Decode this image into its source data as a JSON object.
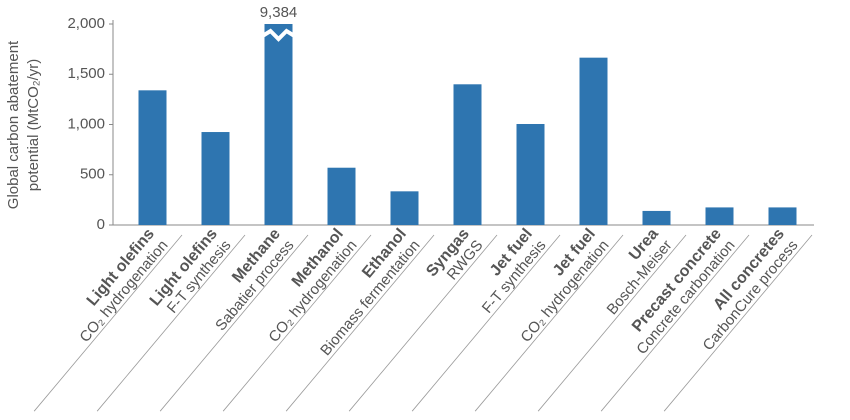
{
  "chart_data": {
    "type": "bar",
    "y_label_lines": [
      "Global carbon abatement",
      "potential (MtCO₂/yr)"
    ],
    "categories": [
      "Light olefins",
      "Light olefins",
      "Methane",
      "Methanol",
      "Ethanol",
      "Syngas",
      "Jet fuel",
      "Jet fuel",
      "Urea",
      "Precast concrete",
      "All concretes"
    ],
    "category_processes": [
      "CO₂ hydrogenation",
      "F-T synthesis",
      "Sabatier process",
      "CO₂ hydrogenation",
      "Biomass fermentation",
      "RWGS",
      "F-T synthesis",
      "CO₂ hydrogenation",
      "Bosch-Meiser",
      "Concrete carbonation",
      "CarbonCure process"
    ],
    "values": [
      1340,
      925,
      9384,
      570,
      335,
      1400,
      1005,
      1665,
      140,
      175,
      175
    ],
    "value_labels": [
      null,
      null,
      "9,384",
      null,
      null,
      null,
      null,
      null,
      null,
      null,
      null
    ],
    "color": "#2e75b0",
    "ylim": [
      0,
      2000
    ],
    "yticks": [
      0,
      500,
      {
        "value": 1000,
        "label": "1,000"
      },
      {
        "value": 1500,
        "label": "1,500"
      },
      {
        "value": 2000,
        "label": "2,000"
      }
    ],
    "grid": false
  }
}
